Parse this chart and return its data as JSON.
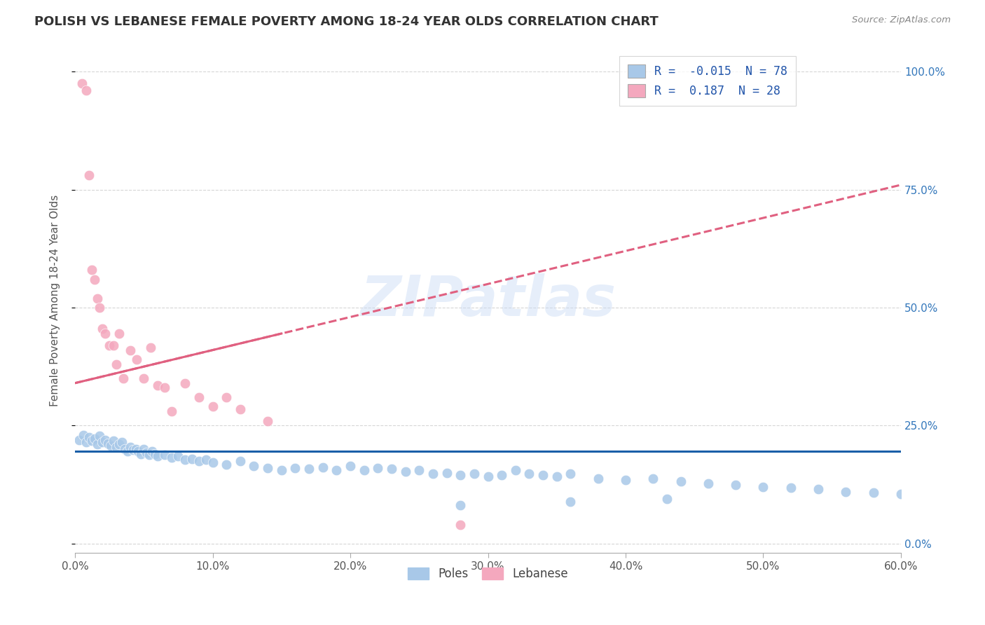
{
  "title": "POLISH VS LEBANESE FEMALE POVERTY AMONG 18-24 YEAR OLDS CORRELATION CHART",
  "source": "Source: ZipAtlas.com",
  "ylabel": "Female Poverty Among 18-24 Year Olds",
  "xlim": [
    0.0,
    0.6
  ],
  "ylim": [
    -0.02,
    1.05
  ],
  "ytick_vals": [
    0.0,
    0.25,
    0.5,
    0.75,
    1.0
  ],
  "ytick_labels": [
    "0.0%",
    "25.0%",
    "50.0%",
    "75.0%",
    "100.0%"
  ],
  "xtick_vals": [
    0.0,
    0.1,
    0.2,
    0.3,
    0.4,
    0.5,
    0.6
  ],
  "xtick_labels": [
    "0.0%",
    "10.0%",
    "20.0%",
    "30.0%",
    "40.0%",
    "50.0%",
    "60.0%"
  ],
  "watermark": "ZIPatlas",
  "poles_color": "#a8c8e8",
  "lebanese_color": "#f4a8be",
  "poles_line_color": "#1a5fa8",
  "lebanese_line_color": "#e06080",
  "poles_R": -0.015,
  "poles_N": 78,
  "lebanese_R": 0.187,
  "lebanese_N": 28,
  "poles_x": [
    0.003,
    0.006,
    0.008,
    0.01,
    0.012,
    0.014,
    0.016,
    0.018,
    0.02,
    0.022,
    0.024,
    0.026,
    0.028,
    0.03,
    0.032,
    0.034,
    0.036,
    0.038,
    0.04,
    0.042,
    0.044,
    0.046,
    0.048,
    0.05,
    0.052,
    0.054,
    0.056,
    0.058,
    0.06,
    0.065,
    0.07,
    0.075,
    0.08,
    0.085,
    0.09,
    0.095,
    0.1,
    0.11,
    0.12,
    0.13,
    0.14,
    0.15,
    0.16,
    0.17,
    0.18,
    0.19,
    0.2,
    0.21,
    0.22,
    0.23,
    0.24,
    0.25,
    0.26,
    0.27,
    0.28,
    0.29,
    0.3,
    0.31,
    0.32,
    0.33,
    0.34,
    0.35,
    0.36,
    0.38,
    0.4,
    0.42,
    0.44,
    0.46,
    0.48,
    0.5,
    0.52,
    0.54,
    0.56,
    0.58,
    0.6,
    0.43,
    0.36,
    0.28
  ],
  "poles_y": [
    0.22,
    0.23,
    0.215,
    0.225,
    0.218,
    0.222,
    0.21,
    0.228,
    0.215,
    0.22,
    0.212,
    0.208,
    0.218,
    0.205,
    0.21,
    0.215,
    0.2,
    0.195,
    0.205,
    0.198,
    0.2,
    0.195,
    0.19,
    0.2,
    0.192,
    0.188,
    0.195,
    0.19,
    0.185,
    0.188,
    0.182,
    0.185,
    0.178,
    0.18,
    0.175,
    0.178,
    0.172,
    0.168,
    0.175,
    0.165,
    0.16,
    0.155,
    0.16,
    0.158,
    0.162,
    0.155,
    0.165,
    0.155,
    0.16,
    0.158,
    0.152,
    0.155,
    0.148,
    0.15,
    0.145,
    0.148,
    0.142,
    0.145,
    0.155,
    0.148,
    0.145,
    0.142,
    0.148,
    0.138,
    0.135,
    0.138,
    0.132,
    0.128,
    0.125,
    0.12,
    0.118,
    0.115,
    0.11,
    0.108,
    0.105,
    0.095,
    0.088,
    0.082
  ],
  "leb_x": [
    0.005,
    0.008,
    0.01,
    0.012,
    0.014,
    0.016,
    0.018,
    0.02,
    0.022,
    0.025,
    0.028,
    0.03,
    0.032,
    0.035,
    0.04,
    0.045,
    0.05,
    0.055,
    0.06,
    0.065,
    0.07,
    0.08,
    0.09,
    0.1,
    0.11,
    0.12,
    0.14,
    0.28
  ],
  "leb_y": [
    0.975,
    0.96,
    0.78,
    0.58,
    0.56,
    0.52,
    0.5,
    0.455,
    0.445,
    0.42,
    0.42,
    0.38,
    0.445,
    0.35,
    0.41,
    0.39,
    0.35,
    0.415,
    0.335,
    0.33,
    0.28,
    0.34,
    0.31,
    0.29,
    0.31,
    0.285,
    0.26,
    0.04
  ],
  "leb_line_x0": 0.0,
  "leb_line_y0": 0.34,
  "leb_line_x1": 0.6,
  "leb_line_y1": 0.76,
  "poles_line_y": 0.195
}
